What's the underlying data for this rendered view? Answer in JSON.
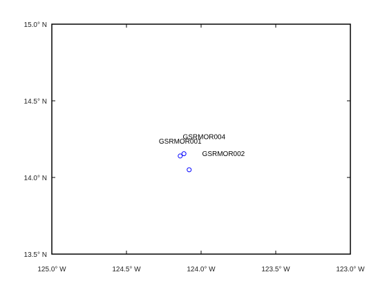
{
  "chart_data": {
    "type": "scatter",
    "title": "",
    "xlabel": "",
    "ylabel": "",
    "xlim": [
      -125.0,
      -123.0
    ],
    "ylim": [
      13.5,
      15.0
    ],
    "xticks": [
      -125.0,
      -124.5,
      -124.0,
      -123.5,
      -123.0
    ],
    "xtick_labels": [
      "125.0° W",
      "124.5° W",
      "124.0° W",
      "123.5° W",
      "123.0° W"
    ],
    "yticks": [
      13.5,
      14.0,
      14.5,
      15.0
    ],
    "ytick_labels": [
      "13.5° N",
      "14.0° N",
      "14.5° N",
      "15.0° N"
    ],
    "grid": false,
    "marker": "circle",
    "marker_color": "#0000ff",
    "points": [
      {
        "x": -124.14,
        "y": 14.14
      },
      {
        "x": -124.115,
        "y": 14.155
      },
      {
        "x": -124.08,
        "y": 14.05
      }
    ],
    "annotations": [
      {
        "text": "GSRMOR001",
        "x": -124.14,
        "y": 14.22
      },
      {
        "text": "GSRMOR004",
        "x": -123.98,
        "y": 14.25
      },
      {
        "text": "GSRMOR002",
        "x": -123.85,
        "y": 14.14
      }
    ]
  }
}
